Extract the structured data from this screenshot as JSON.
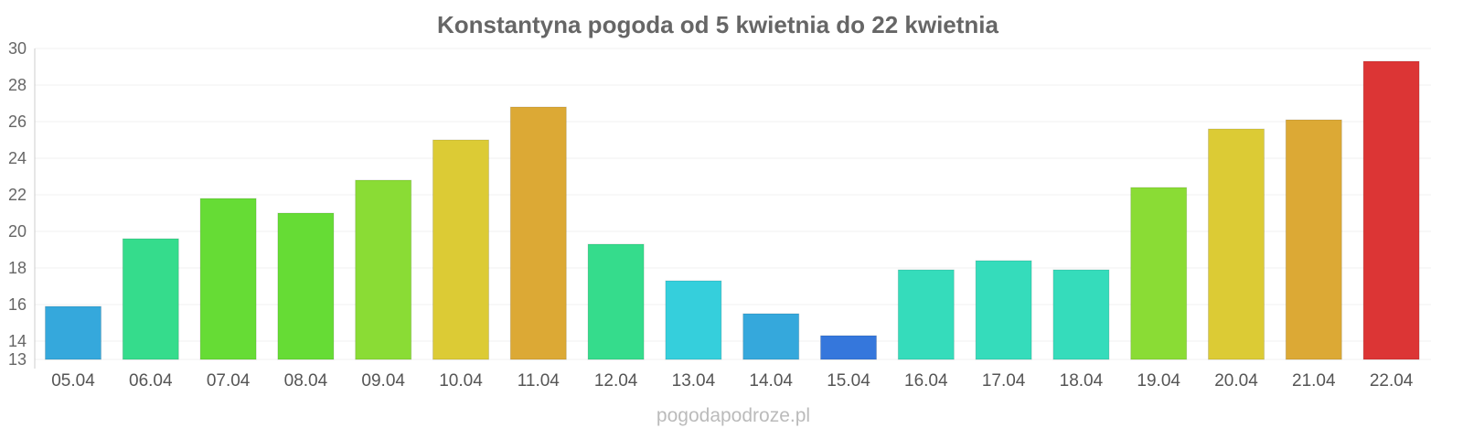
{
  "chart_data": {
    "type": "bar",
    "title": "Konstantyna pogoda od 5 kwietnia do 22 kwietnia",
    "xlabel": "",
    "ylabel": "",
    "ylim": [
      13,
      30
    ],
    "yticks": [
      13,
      14,
      16,
      18,
      20,
      22,
      24,
      26,
      28,
      30
    ],
    "grid": true,
    "categories": [
      "05.04",
      "06.04",
      "07.04",
      "08.04",
      "09.04",
      "10.04",
      "11.04",
      "12.04",
      "13.04",
      "14.04",
      "15.04",
      "16.04",
      "17.04",
      "18.04",
      "19.04",
      "20.04",
      "21.04",
      "22.04"
    ],
    "values": [
      15.9,
      19.6,
      21.8,
      21.0,
      22.8,
      25.0,
      26.8,
      19.3,
      17.3,
      15.5,
      14.3,
      17.9,
      18.4,
      17.9,
      22.4,
      25.6,
      26.1,
      29.3
    ],
    "colors": [
      "#35a8dc",
      "#35dc8c",
      "#66dc35",
      "#66dc35",
      "#8adc35",
      "#dccb35",
      "#dca935",
      "#35dc8c",
      "#35cfdc",
      "#35a8dc",
      "#3577dc",
      "#35dcbb",
      "#35dcbb",
      "#35dcbb",
      "#8adc35",
      "#dccb35",
      "#dca935",
      "#dc3535"
    ],
    "watermark": "pogodapodroze.pl"
  }
}
